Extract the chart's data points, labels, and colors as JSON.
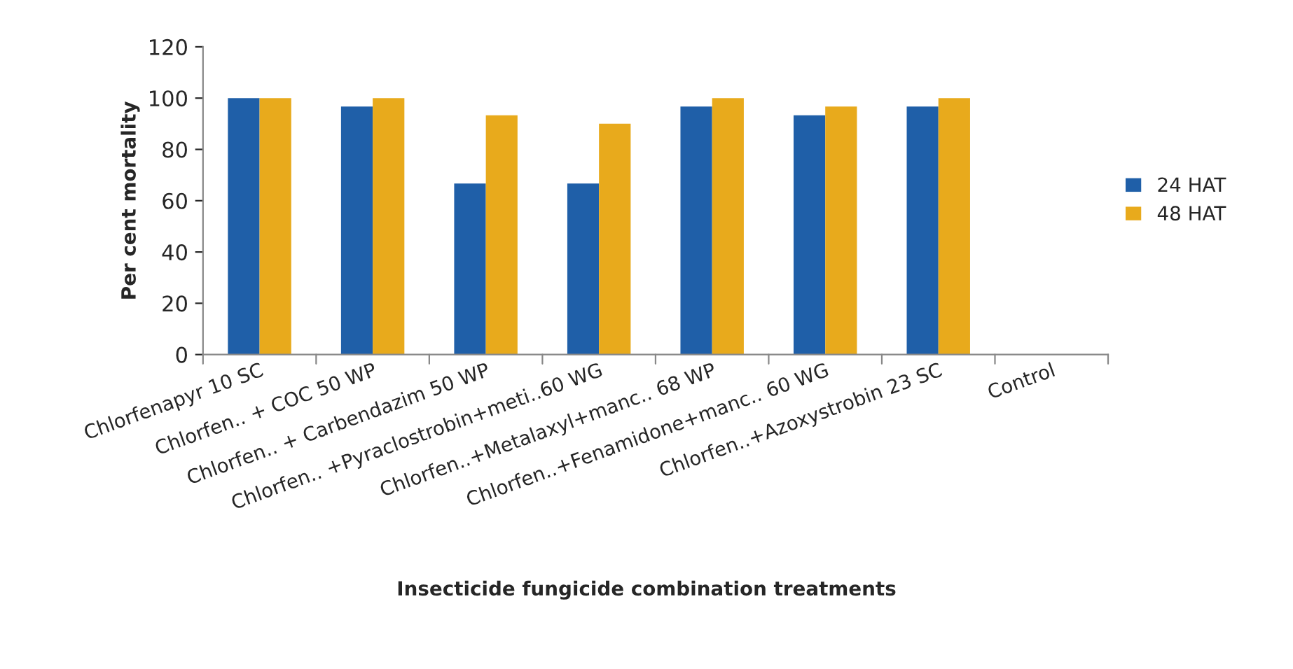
{
  "chart_data": {
    "type": "bar",
    "xlabel": "Insecticide fungicide combination treatments",
    "ylabel": "Per cent mortality",
    "categories": [
      "Chlorfenapyr 10 SC",
      "Chlorfen.. + COC 50 WP",
      "Chlorfen.. + Carbendazim 50 WP",
      "Chlorfen.. +Pyraclostrobin+meti..60 WG",
      "Chlorfen..+Metalaxyl+manc.. 68 WP",
      "Chlorfen..+Fenamidone+manc.. 60 WG",
      "Chlorfen..+Azoxystrobin 23 SC",
      "Control"
    ],
    "series": [
      {
        "name": "24 HAT",
        "color": "#1f5fa8",
        "values": [
          100,
          96.7,
          66.7,
          66.7,
          96.7,
          93.3,
          96.7,
          null
        ]
      },
      {
        "name": "48 HAT",
        "color": "#e8aa1c",
        "values": [
          100,
          100,
          93.3,
          90,
          100,
          96.7,
          100,
          null
        ]
      }
    ],
    "ylim": [
      0,
      120
    ],
    "yticks": [
      0,
      20,
      40,
      60,
      80,
      100,
      120
    ],
    "grid": false,
    "legend": "right"
  }
}
